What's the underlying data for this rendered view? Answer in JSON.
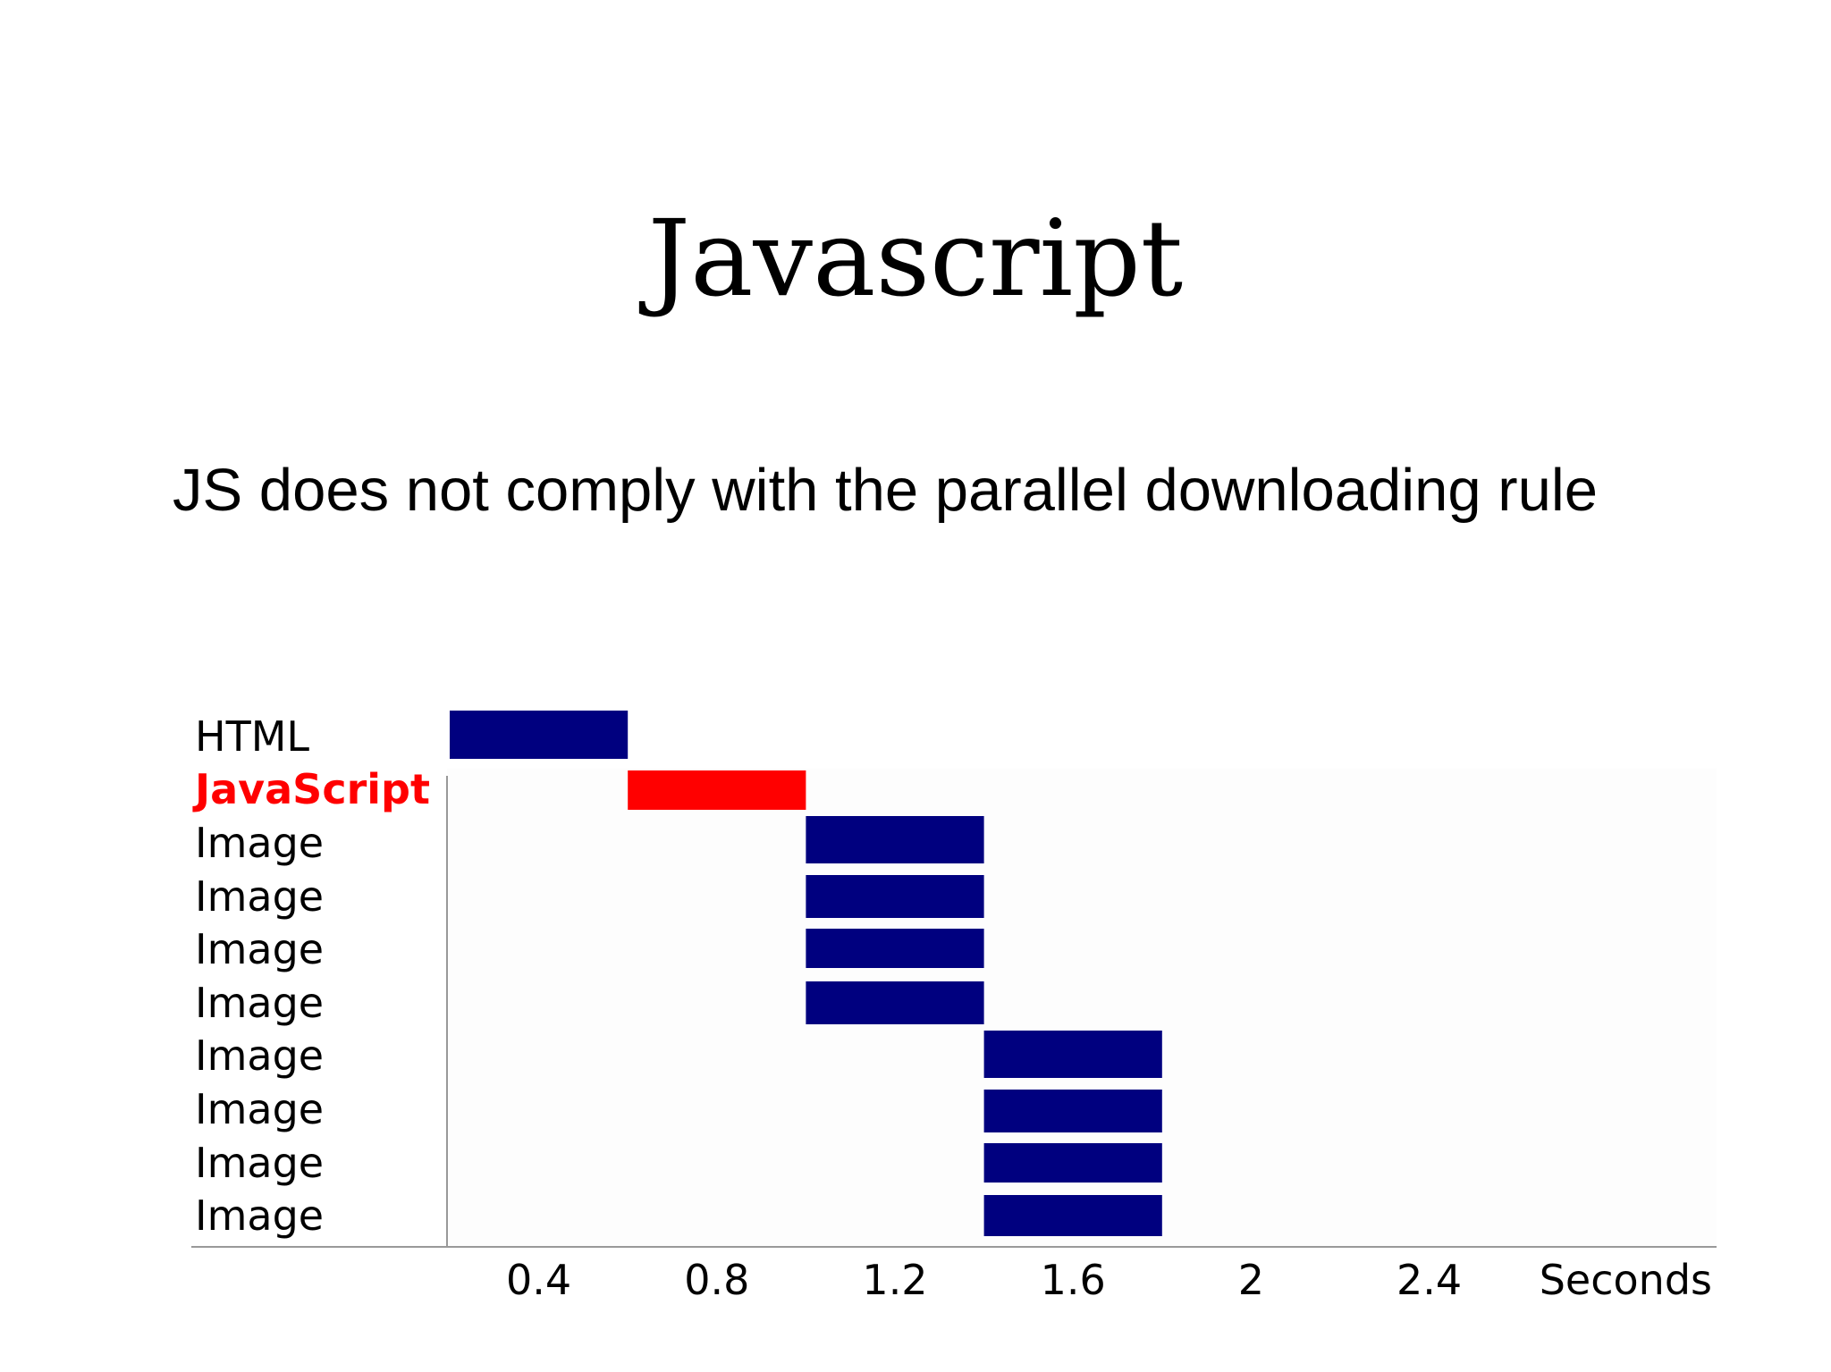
{
  "slide": {
    "title": "Javascript",
    "subtitle": "JS does not comply with the parallel downloading rule"
  },
  "colors": {
    "bar": "#00007f",
    "highlight": "#ff0000",
    "axis": "#999999",
    "text": "#000000"
  },
  "chart_data": {
    "type": "bar",
    "orientation": "horizontal-timeline",
    "xunit": "Seconds",
    "xlim": [
      0.2,
      2.8
    ],
    "xticks": [
      "0.4",
      "0.8",
      "1.2",
      "1.6",
      "2",
      "2.4"
    ],
    "xtick_values": [
      0.4,
      0.8,
      1.2,
      1.6,
      2.0,
      2.4
    ],
    "grid": false,
    "rows": [
      {
        "label": "HTML",
        "start": 0.2,
        "end": 0.6,
        "highlight": false
      },
      {
        "label": "JavaScript",
        "start": 0.6,
        "end": 1.0,
        "highlight": true
      },
      {
        "label": "Image",
        "start": 1.0,
        "end": 1.4,
        "highlight": false
      },
      {
        "label": "Image",
        "start": 1.0,
        "end": 1.4,
        "highlight": false
      },
      {
        "label": "Image",
        "start": 1.0,
        "end": 1.4,
        "highlight": false
      },
      {
        "label": "Image",
        "start": 1.0,
        "end": 1.4,
        "highlight": false
      },
      {
        "label": "Image",
        "start": 1.4,
        "end": 1.8,
        "highlight": false
      },
      {
        "label": "Image",
        "start": 1.4,
        "end": 1.8,
        "highlight": false
      },
      {
        "label": "Image",
        "start": 1.4,
        "end": 1.8,
        "highlight": false
      },
      {
        "label": "Image",
        "start": 1.4,
        "end": 1.8,
        "highlight": false
      }
    ]
  }
}
